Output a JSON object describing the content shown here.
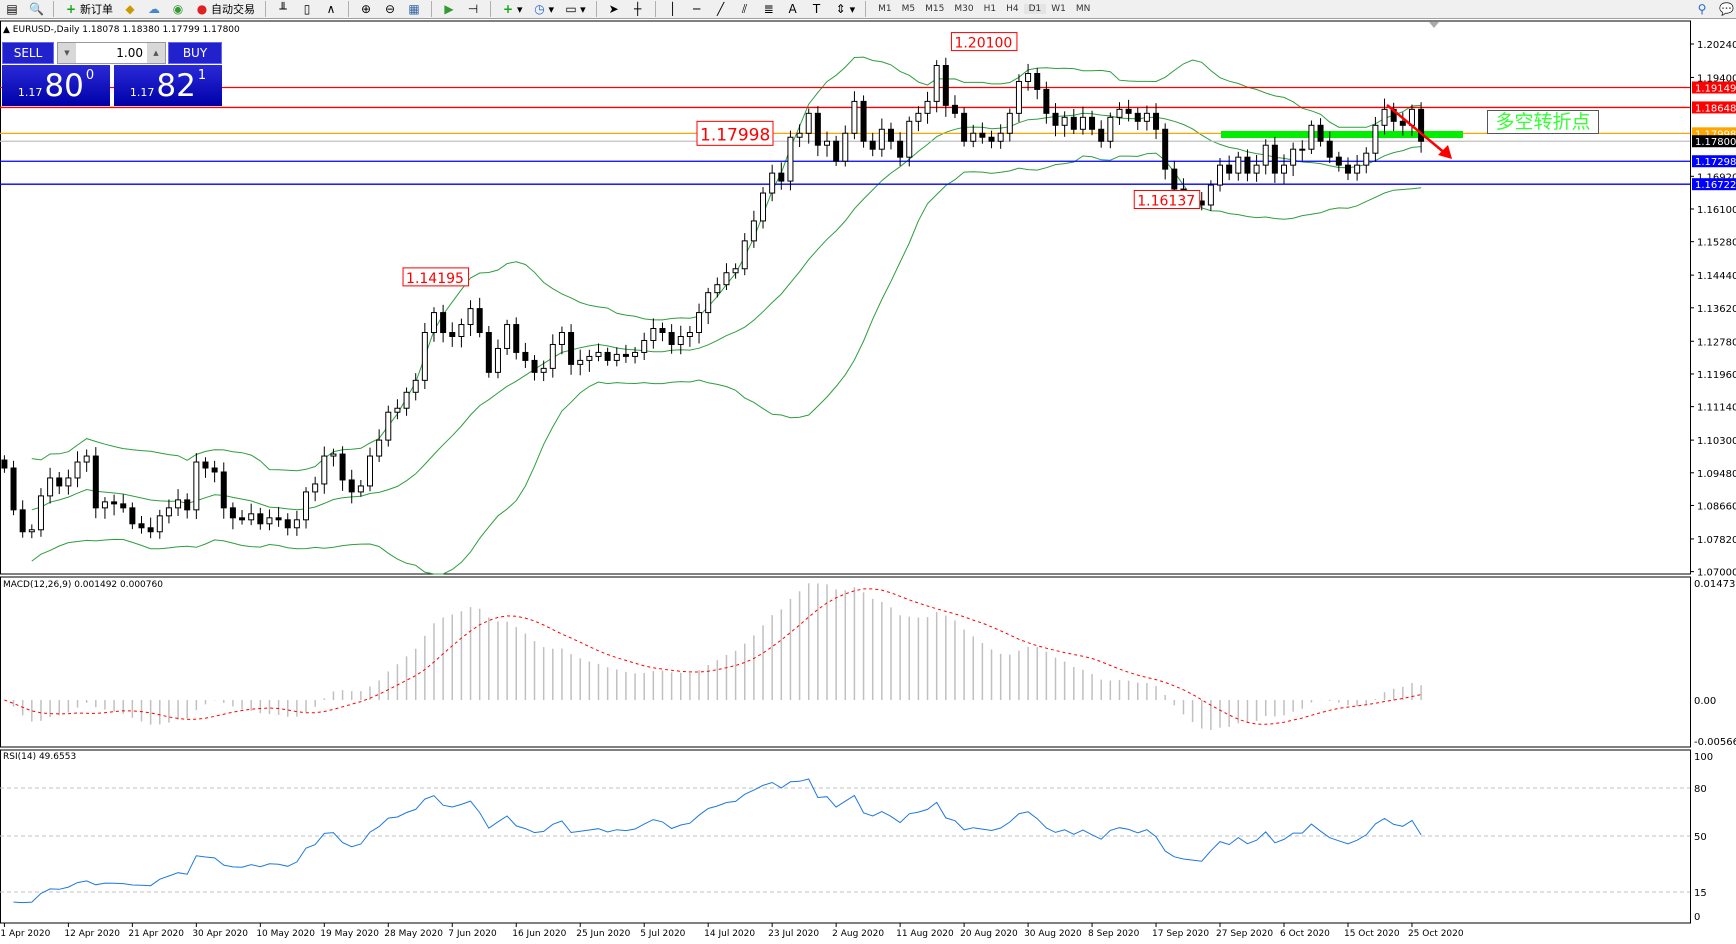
{
  "toolbar": {
    "new_order": "新订单",
    "auto_trading": "自动交易",
    "timeframes": [
      "M1",
      "M5",
      "M15",
      "M30",
      "H1",
      "H4",
      "D1",
      "W1",
      "MN"
    ],
    "active_timeframe": "D1"
  },
  "legend": "EURUSD-,Daily  1.18078 1.18380 1.17799 1.17800",
  "trade_panel": {
    "sell_label": "SELL",
    "buy_label": "BUY",
    "lot": "1.00",
    "sell": {
      "prefix": "1.17",
      "big": "80",
      "sup": "0"
    },
    "buy": {
      "prefix": "1.17",
      "big": "82",
      "sup": "1"
    }
  },
  "note_text": "多空转折点",
  "chart_data": {
    "type": "candlestick",
    "symbol": "EURUSD-",
    "period": "Daily",
    "closes": [
      1.096,
      1.0855,
      1.08,
      1.0805,
      1.089,
      1.0935,
      1.0915,
      1.0935,
      1.0975,
      1.099,
      1.086,
      1.0875,
      1.087,
      1.086,
      1.082,
      1.081,
      1.08,
      1.084,
      1.086,
      1.088,
      1.0855,
      1.0975,
      1.096,
      1.095,
      1.086,
      1.0835,
      1.083,
      1.0845,
      1.082,
      1.0835,
      1.083,
      1.081,
      1.083,
      1.09,
      1.092,
      1.099,
      1.0995,
      1.093,
      1.09,
      1.0915,
      1.099,
      1.103,
      1.11,
      1.111,
      1.115,
      1.118,
      1.13,
      1.135,
      1.13,
      1.129,
      1.132,
      1.136,
      1.13,
      1.12,
      1.126,
      1.132,
      1.125,
      1.123,
      1.12,
      1.121,
      1.127,
      1.13,
      1.122,
      1.123,
      1.124,
      1.125,
      1.123,
      1.1245,
      1.124,
      1.125,
      1.128,
      1.131,
      1.13,
      1.127,
      1.129,
      1.13,
      1.135,
      1.14,
      1.142,
      1.145,
      1.146,
      1.153,
      1.158,
      1.165,
      1.17,
      1.168,
      1.179,
      1.18,
      1.185,
      1.177,
      1.178,
      1.173,
      1.18,
      1.188,
      1.178,
      1.176,
      1.181,
      1.178,
      1.174,
      1.183,
      1.185,
      1.188,
      1.197,
      1.187,
      1.185,
      1.178,
      1.18,
      1.179,
      1.178,
      1.18,
      1.185,
      1.193,
      1.195,
      1.191,
      1.185,
      1.182,
      1.184,
      1.181,
      1.184,
      1.181,
      1.178,
      1.184,
      1.186,
      1.185,
      1.183,
      1.185,
      1.181,
      1.171,
      1.166,
      1.164,
      1.163,
      1.162,
      1.167,
      1.172,
      1.17,
      1.174,
      1.17,
      1.172,
      1.177,
      1.17,
      1.172,
      1.176,
      1.176,
      1.182,
      1.178,
      1.174,
      1.172,
      1.17,
      1.172,
      1.175,
      1.182,
      1.186,
      1.183,
      1.182,
      1.186,
      1.178
    ],
    "price_range": [
      1.07,
      1.2024
    ],
    "price_ticks": [
      "1.20240",
      "1.19400",
      "1.16920",
      "1.16100",
      "1.15280",
      "1.14440",
      "1.13620",
      "1.12780",
      "1.11960",
      "1.11140",
      "1.10300",
      "1.09480",
      "1.08660",
      "1.07820",
      "1.07000"
    ],
    "date_labels": [
      "1 Apr 2020",
      "12 Apr 2020",
      "21 Apr 2020",
      "30 Apr 2020",
      "10 May 2020",
      "19 May 2020",
      "28 May 2020",
      "7 Jun 2020",
      "16 Jun 2020",
      "25 Jun 2020",
      "5 Jul 2020",
      "14 Jul 2020",
      "23 Jul 2020",
      "2 Aug 2020",
      "11 Aug 2020",
      "20 Aug 2020",
      "30 Aug 2020",
      "8 Sep 2020",
      "17 Sep 2020",
      "27 Sep 2020",
      "6 Oct 2020",
      "15 Oct 2020",
      "25 Oct 2020"
    ],
    "horizontal_lines": [
      {
        "price": 1.19149,
        "label": "1.19149",
        "color": "#ff0000"
      },
      {
        "price": 1.18648,
        "label": "1.18648",
        "color": "#ff0000"
      },
      {
        "price": 1.17998,
        "label": "1.17998",
        "color": "#ffa500"
      },
      {
        "price": 1.178,
        "label": "1.17800",
        "color": "#c0c0c0",
        "label_bg": "#000000"
      },
      {
        "price": 1.17298,
        "label": "1.17298",
        "color": "#0000ff"
      },
      {
        "price": 1.16722,
        "label": "1.16722",
        "color": "#0000ff"
      }
    ],
    "price_callouts": [
      {
        "text": "1.20100",
        "price": 1.201,
        "bar": 111
      },
      {
        "text": "1.14195",
        "price": 1.14195,
        "bar": 51
      },
      {
        "text": "1.16137",
        "price": 1.16137,
        "bar": 131
      },
      {
        "text": "1.17998",
        "price": 1.17998,
        "bar": 80
      }
    ],
    "support_line": {
      "price": 1.1797,
      "color": "#00ee00"
    },
    "bollinger": {
      "period": 20,
      "deviation": 2,
      "color": "#2e9e3e"
    },
    "macd": {
      "label": "MACD(12,26,9) 0.001492 0.000760",
      "fast": 12,
      "slow": 26,
      "signal": 9,
      "range": [
        -0.005661,
        0.014732
      ],
      "ticks": [
        "0.014732",
        "0.00",
        "-0.005661"
      ],
      "bar_color": "#c0c0c0",
      "signal_color": "#ff0000"
    },
    "rsi": {
      "label": "RSI(14) 49.6553",
      "period": 14,
      "levels": [
        80,
        50,
        15
      ],
      "ticks": [
        "100",
        "80",
        "50",
        "15",
        "0"
      ],
      "color": "#1e78e0"
    },
    "bull_color": "#ffffff",
    "bear_color": "#000000"
  }
}
